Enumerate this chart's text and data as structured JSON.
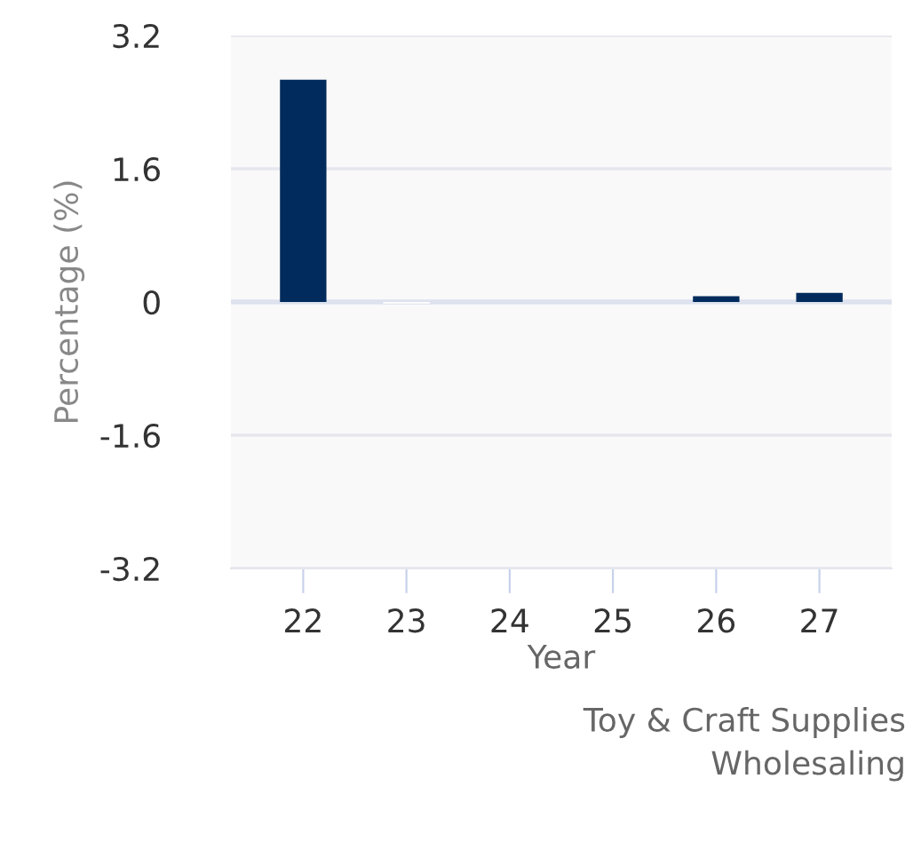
{
  "chart_data": {
    "type": "bar",
    "categories": [
      "22",
      "23",
      "24",
      "25",
      "26",
      "27"
    ],
    "values": [
      2.67,
      -0.02,
      0,
      0,
      0.07,
      0.11
    ],
    "colors": [
      "#002b5c",
      "#ffffff",
      "#002b5c",
      "#002b5c",
      "#002b5c",
      "#002b5c"
    ],
    "ylim": [
      -3.2,
      3.2
    ],
    "yticks": [
      -3.2,
      -1.6,
      0,
      1.6,
      3.2
    ],
    "xlabel": "Year",
    "ylabel": "Percentage (%)",
    "annotations": [
      "Toy & Craft Supplies\nWholesaling"
    ],
    "grid": "y"
  }
}
